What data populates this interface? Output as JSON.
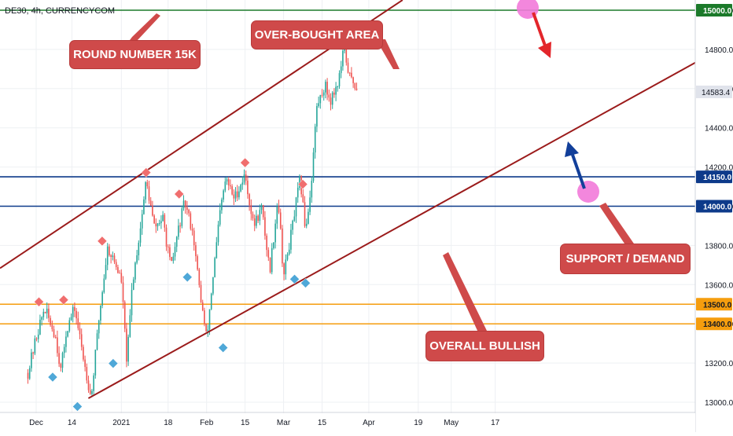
{
  "header": {
    "title": "DE30, 4h, CURRENCYCOM"
  },
  "colors": {
    "up": "#26a69a",
    "down": "#ef5350",
    "channel": "#9b1b1b",
    "blue_level": "#0d3a8a",
    "green_level": "#1b7a2a",
    "orange_level": "#f59d0e",
    "callout": "#cf4a4a",
    "marker_red": "#f06e6e",
    "marker_blue": "#4fa8d8",
    "circle": "#f27ad9"
  },
  "annotations": {
    "round_number": "ROUND NUMBER 15K",
    "over_bought": "OVER-BOUGHT AREA",
    "support": "SUPPORT / DEMAND",
    "bullish": "OVERALL BULLISH"
  },
  "chart_data": {
    "type": "candlestick",
    "symbol": "DE30",
    "timeframe": "4h",
    "source": "CURRENCYCOM",
    "y_ticks": [
      "15000.0",
      "14800.0",
      "14600.0",
      "14400.0",
      "14200.0",
      "14000.0",
      "13800.0",
      "13600.0",
      "13400.0",
      "13200.0",
      "13000.0"
    ],
    "x_ticks": [
      "Dec",
      "14",
      "2021",
      "18",
      "Feb",
      "15",
      "Mar",
      "15",
      "Apr",
      "19",
      "May",
      "17"
    ],
    "ylim": [
      12960,
      15060
    ],
    "last_price": 14583.4,
    "levels": [
      {
        "value": 15000.0,
        "label": "15000.0",
        "color": "green"
      },
      {
        "value": 14150.0,
        "label": "14150.0",
        "color": "blue"
      },
      {
        "value": 14000.0,
        "label": "14000.0",
        "color": "blue"
      },
      {
        "value": 13500.0,
        "label": "13500.0",
        "color": "orange"
      },
      {
        "value": 13400.0,
        "label": "13400.0",
        "color": "orange"
      }
    ],
    "price_path": [
      [
        "Nov 28",
        13150
      ],
      [
        "Dec 1",
        13330
      ],
      [
        "Dec 4",
        13480
      ],
      [
        "Dec 8",
        13340
      ],
      [
        "Dec 10",
        13160
      ],
      [
        "Dec 12",
        13370
      ],
      [
        "Dec 15",
        13480
      ],
      [
        "Dec 18",
        13240
      ],
      [
        "Dec 21",
        13020
      ],
      [
        "Dec 24",
        13450
      ],
      [
        "Dec 27",
        13790
      ],
      [
        "Dec 30",
        13700
      ],
      [
        "Jan 1",
        13620
      ],
      [
        "Jan 3",
        13200
      ],
      [
        "Jan 5",
        13610
      ],
      [
        "Jan 8",
        13900
      ],
      [
        "Jan 10",
        14130
      ],
      [
        "Jan 13",
        13890
      ],
      [
        "Jan 16",
        13940
      ],
      [
        "Jan 19",
        13680
      ],
      [
        "Jan 22",
        13900
      ],
      [
        "Jan 24",
        14020
      ],
      [
        "Jan 27",
        13870
      ],
      [
        "Jan 29",
        13620
      ],
      [
        "Feb 1",
        13320
      ],
      [
        "Feb 3",
        13600
      ],
      [
        "Feb 6",
        13980
      ],
      [
        "Feb 8",
        14140
      ],
      [
        "Feb 11",
        14040
      ],
      [
        "Feb 15",
        14160
      ],
      [
        "Feb 18",
        13900
      ],
      [
        "Feb 21",
        13990
      ],
      [
        "Feb 24",
        13670
      ],
      [
        "Feb 27",
        14050
      ],
      [
        "Mar 1",
        13640
      ],
      [
        "Mar 4",
        13880
      ],
      [
        "Mar 7",
        14140
      ],
      [
        "Mar 9",
        13880
      ],
      [
        "Mar 11",
        14100
      ],
      [
        "Mar 13",
        14500
      ],
      [
        "Mar 16",
        14620
      ],
      [
        "Mar 18",
        14540
      ],
      [
        "Mar 21",
        14640
      ],
      [
        "Mar 23",
        14800
      ],
      [
        "Mar 25",
        14660
      ],
      [
        "Mar 28",
        14600
      ]
    ],
    "swing_highs": [
      [
        "Dec 2",
        13480
      ],
      [
        "Dec 11",
        13490
      ],
      [
        "Dec 25",
        13790
      ],
      [
        "Jan 10",
        14140
      ],
      [
        "Jan 22",
        14030
      ],
      [
        "Feb 15",
        14190
      ],
      [
        "Mar 8",
        14080
      ]
    ],
    "swing_lows": [
      [
        "Dec 7",
        13160
      ],
      [
        "Dec 16",
        13010
      ],
      [
        "Dec 29",
        13230
      ],
      [
        "Jan 25",
        13670
      ],
      [
        "Feb 7",
        13310
      ],
      [
        "Mar 5",
        13660
      ],
      [
        "Mar 9",
        13640
      ]
    ],
    "channel_upper": [
      [
        "Nov 26",
        13760
      ],
      [
        "Apr 12",
        15040
      ]
    ],
    "channel_lower": [
      [
        "Dec 20",
        13020
      ],
      [
        "Jun 3",
        14300
      ]
    ]
  }
}
